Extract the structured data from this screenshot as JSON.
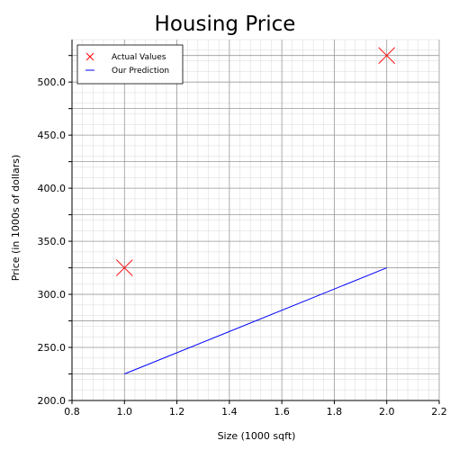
{
  "chart_data": {
    "type": "line",
    "title": "Housing Price",
    "xlabel": "Size (1000 sqft)",
    "ylabel": "Price (in 1000s of dollars)",
    "xlim": [
      0.8,
      2.2
    ],
    "ylim": [
      200,
      540
    ],
    "x_ticks": [
      0.8,
      1.0,
      1.2,
      1.4,
      1.6,
      1.8,
      2.0,
      2.2
    ],
    "x_tick_labels": [
      "0.8",
      "1.0",
      "1.2",
      "1.4",
      "1.6",
      "1.8",
      "2.0",
      "2.2"
    ],
    "y_ticks": [
      200,
      250,
      300,
      350,
      400,
      450,
      500
    ],
    "y_tick_labels": [
      "200.0",
      "250.0",
      "300.0",
      "350.0",
      "400.0",
      "450.0",
      "500.0"
    ],
    "grid": true,
    "minor_grid": true,
    "legend_position": "top-left",
    "series": [
      {
        "name": "Actual Values",
        "kind": "scatter",
        "marker": "x",
        "color": "#ff0000",
        "x": [
          1.0,
          2.0
        ],
        "y": [
          325,
          525
        ]
      },
      {
        "name": "Our Prediction",
        "kind": "line",
        "color": "#0000ff",
        "x": [
          1.0,
          2.0
        ],
        "y": [
          225,
          325
        ]
      }
    ]
  }
}
